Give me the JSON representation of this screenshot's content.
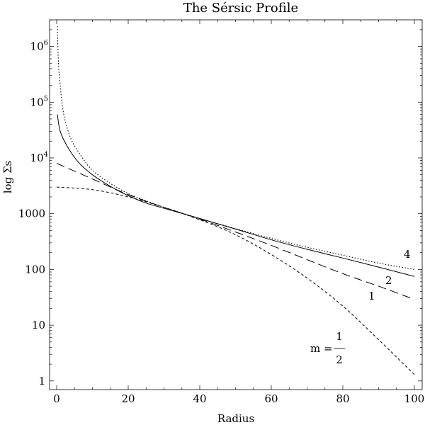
{
  "chart_data": {
    "type": "line",
    "title": "The Sérsic Profile",
    "xlabel": "Radius",
    "ylabel": "log Σs",
    "xlim": [
      0,
      100
    ],
    "ylim": [
      0.7,
      3000000
    ],
    "yscale": "log",
    "grid": false,
    "x_ticks": [
      0,
      20,
      40,
      60,
      80,
      100
    ],
    "y_ticks": [
      {
        "value": 1,
        "mantissa": "1",
        "exponent": ""
      },
      {
        "value": 10,
        "mantissa": "10",
        "exponent": ""
      },
      {
        "value": 100,
        "mantissa": "100",
        "exponent": ""
      },
      {
        "value": 1000,
        "mantissa": "1000",
        "exponent": ""
      },
      {
        "value": 10000,
        "mantissa": "10",
        "exponent": "4"
      },
      {
        "value": 100000,
        "mantissa": "10",
        "exponent": "5"
      },
      {
        "value": 1000000,
        "mantissa": "10",
        "exponent": "6"
      }
    ],
    "series": [
      {
        "label": "1/2",
        "style": "short-dash",
        "x": [
          0,
          10,
          20,
          30,
          40,
          50,
          60,
          70,
          80,
          90,
          100
        ],
        "y": [
          3000,
          2700,
          2000,
          1300,
          780,
          420,
          185,
          70,
          22,
          5.5,
          1.3
        ]
      },
      {
        "label": "1",
        "style": "long-dash",
        "x": [
          0,
          10,
          20,
          30,
          40,
          50,
          60,
          70,
          80,
          90,
          100
        ],
        "y": [
          8000,
          4200,
          2200,
          1300,
          800,
          470,
          270,
          150,
          84,
          50,
          29
        ]
      },
      {
        "label": "2",
        "style": "solid",
        "x": [
          0.2,
          1,
          3,
          6,
          10,
          15,
          20,
          25,
          30,
          40,
          50,
          60,
          70,
          80,
          90,
          100
        ],
        "y": [
          60000,
          30000,
          16000,
          8500,
          5000,
          3100,
          2100,
          1550,
          1250,
          820,
          530,
          340,
          230,
          160,
          110,
          75
        ]
      },
      {
        "label": "4",
        "style": "dotted",
        "x": [
          0.2,
          0.5,
          1,
          2,
          4,
          7,
          10,
          15,
          20,
          25,
          30,
          40,
          50,
          60,
          70,
          80,
          90,
          100
        ],
        "y": [
          2300000,
          500000,
          200000,
          60000,
          22000,
          10500,
          6000,
          3500,
          2300,
          1700,
          1300,
          820,
          540,
          360,
          250,
          180,
          130,
          100
        ]
      }
    ],
    "annotations": {
      "curve_labels": [
        "4",
        "2",
        "1"
      ],
      "m_label": {
        "prefix": "m =",
        "numerator": "1",
        "denominator": "2"
      }
    }
  }
}
